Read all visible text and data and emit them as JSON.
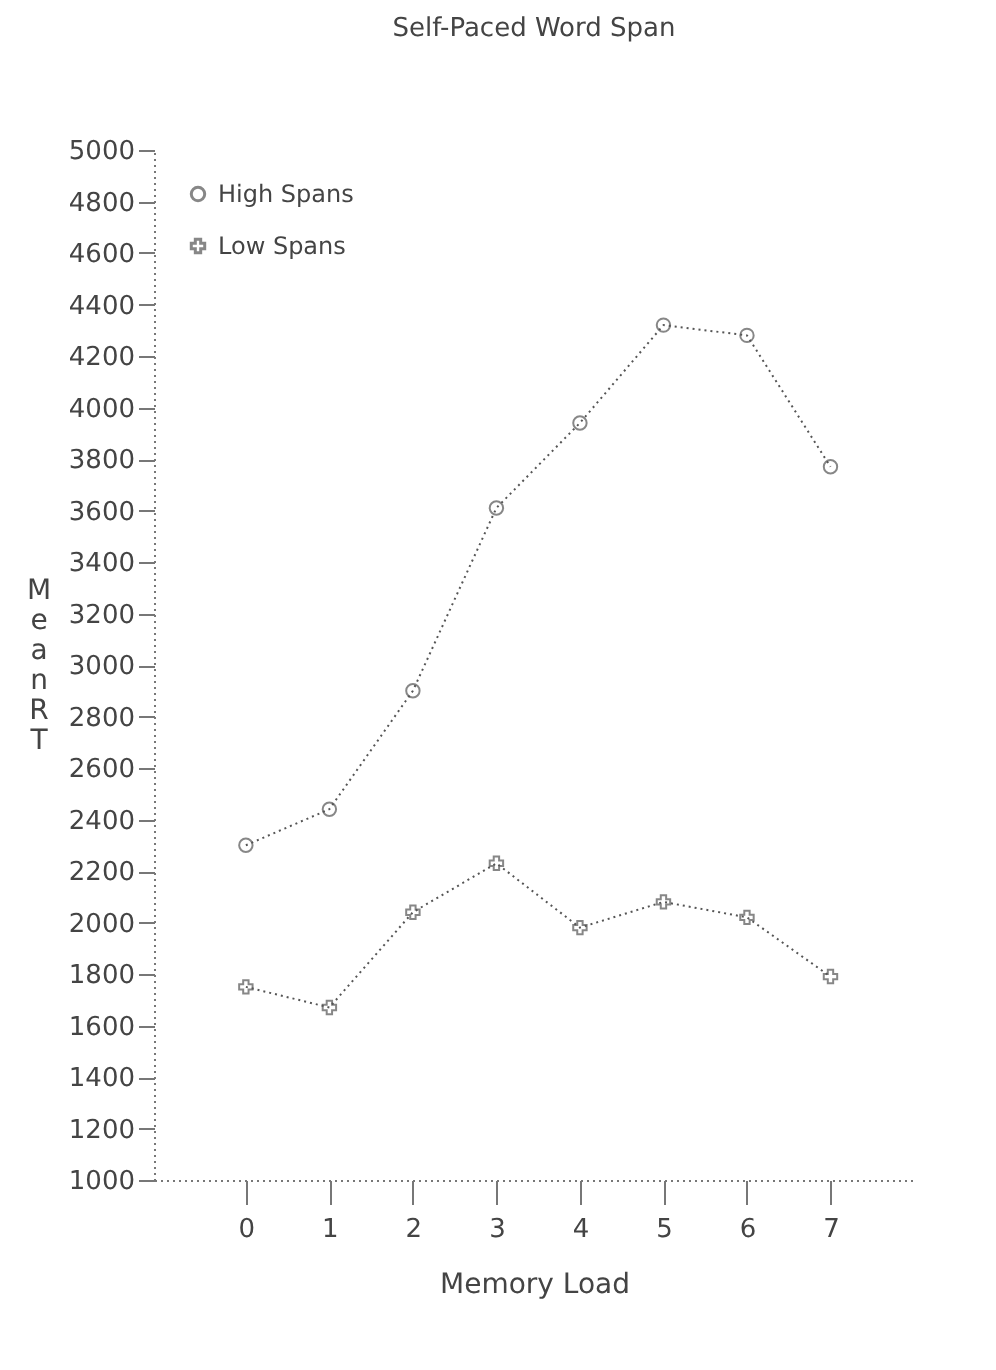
{
  "chart_data": {
    "type": "line",
    "title": "Self-Paced Word Span",
    "xlabel": "Memory Load",
    "ylabel": "Mean RT",
    "x": [
      0,
      1,
      2,
      3,
      4,
      5,
      6,
      7
    ],
    "series": [
      {
        "name": "High Spans",
        "color": "#555555",
        "marker": "circle",
        "values": [
          2300,
          2440,
          2900,
          3610,
          3940,
          4320,
          4280,
          3770
        ]
      },
      {
        "name": "Low Spans",
        "color": "#555555",
        "marker": "cross",
        "values": [
          1750,
          1670,
          2040,
          2230,
          1980,
          2080,
          2020,
          1790
        ]
      }
    ],
    "xlim": [
      -1.1,
      8
    ],
    "xticks": [
      0,
      1,
      2,
      3,
      4,
      5,
      6,
      7
    ],
    "ylim": [
      1000,
      5000
    ],
    "yticks": [
      1000,
      1200,
      1400,
      1600,
      1800,
      2000,
      2200,
      2400,
      2600,
      2800,
      3000,
      3200,
      3400,
      3600,
      3800,
      4000,
      4200,
      4400,
      4600,
      4800,
      5000
    ],
    "grid": false,
    "legend": "top left",
    "line_style": "dotted"
  }
}
